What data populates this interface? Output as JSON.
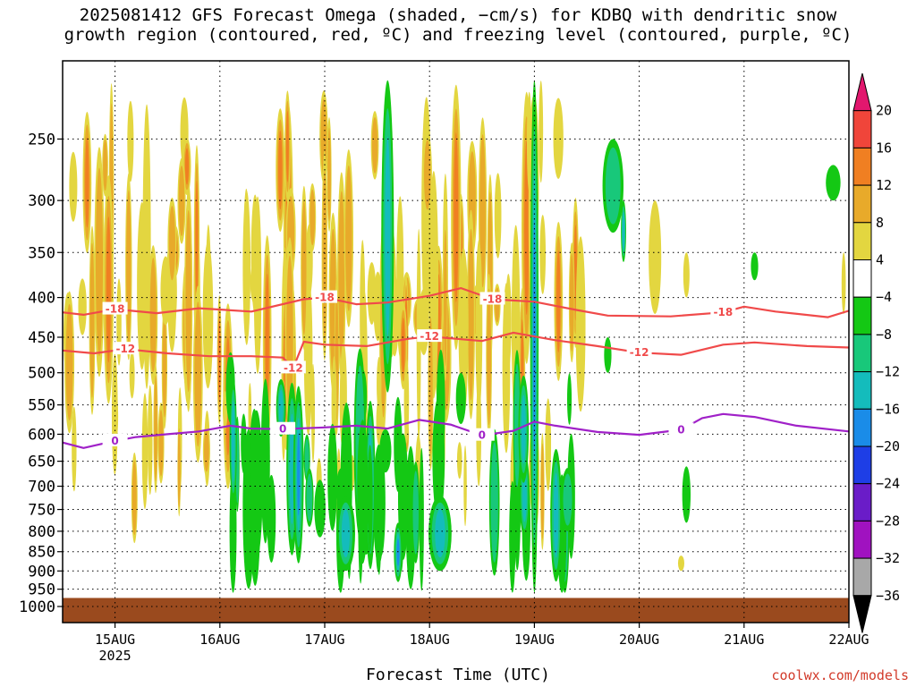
{
  "title": {
    "line1": "2025081412 GFS Forecast Omega (shaded, −cm/s) for KDBQ with dendritic snow",
    "line2": "growth region (contoured, red, ºC) and freezing level (contoured, purple, ºC)"
  },
  "credit": "coolwx.com/models",
  "chart_data": {
    "type": "heatmap",
    "xlabel": "Forecast Time (UTC)",
    "ylabel": "",
    "x_ticks": [
      {
        "label": "15AUG",
        "sub": "2025",
        "day": 15
      },
      {
        "label": "16AUG",
        "sub": "",
        "day": 16
      },
      {
        "label": "17AUG",
        "sub": "",
        "day": 17
      },
      {
        "label": "18AUG",
        "sub": "",
        "day": 18
      },
      {
        "label": "19AUG",
        "sub": "",
        "day": 19
      },
      {
        "label": "20AUG",
        "sub": "",
        "day": 20
      },
      {
        "label": "21AUG",
        "sub": "",
        "day": 21
      },
      {
        "label": "22AUG",
        "sub": "",
        "day": 22
      }
    ],
    "xlim_days": [
      14.5,
      22
    ],
    "y_ticks": [
      250,
      300,
      350,
      400,
      450,
      500,
      550,
      600,
      650,
      700,
      750,
      800,
      850,
      900,
      950,
      1000
    ],
    "ylim_hpa": [
      200,
      1020
    ],
    "grid": true,
    "colorbar": {
      "levels": [
        20,
        16,
        12,
        8,
        4,
        -4,
        -8,
        -12,
        -16,
        -20,
        -24,
        -28,
        -32,
        -36
      ],
      "colors": [
        "#e2176e",
        "#f0453a",
        "#f07f22",
        "#e8aa2a",
        "#e3d640",
        "#ffffff",
        "#14c814",
        "#18c87a",
        "#14bcbc",
        "#1a8ce8",
        "#1e3ee6",
        "#6a1cc8",
        "#a012c0",
        "#a8a8a8",
        "#000000"
      ]
    },
    "ground_color": "#9a4a1e",
    "contours": [
      {
        "label": "-18",
        "color": "#f04a4a",
        "points": [
          [
            14.5,
            418
          ],
          [
            14.7,
            421
          ],
          [
            15.0,
            414
          ],
          [
            15.4,
            419
          ],
          [
            15.8,
            413
          ],
          [
            16.3,
            417
          ],
          [
            16.8,
            402
          ],
          [
            17.0,
            400
          ],
          [
            17.3,
            408
          ],
          [
            17.6,
            406
          ],
          [
            18.0,
            398
          ],
          [
            18.3,
            389
          ],
          [
            18.6,
            402
          ],
          [
            19.0,
            405
          ],
          [
            19.4,
            415
          ],
          [
            19.7,
            422
          ],
          [
            20.3,
            423
          ],
          [
            20.8,
            418
          ],
          [
            21.0,
            411
          ],
          [
            21.3,
            417
          ],
          [
            21.8,
            424
          ],
          [
            22.0,
            416
          ]
        ]
      },
      {
        "label": "-12",
        "color": "#f04a4a",
        "points": [
          [
            14.5,
            468
          ],
          [
            14.8,
            472
          ],
          [
            15.1,
            466
          ],
          [
            15.5,
            472
          ],
          [
            15.9,
            476
          ],
          [
            16.3,
            476
          ],
          [
            16.6,
            478
          ],
          [
            16.7,
            493
          ],
          [
            16.8,
            456
          ],
          [
            17.0,
            460
          ],
          [
            17.4,
            462
          ],
          [
            17.8,
            452
          ],
          [
            18.0,
            449
          ],
          [
            18.5,
            455
          ],
          [
            18.8,
            444
          ],
          [
            19.2,
            454
          ],
          [
            19.6,
            462
          ],
          [
            20.0,
            471
          ],
          [
            20.4,
            474
          ],
          [
            20.8,
            460
          ],
          [
            21.1,
            457
          ],
          [
            21.6,
            462
          ],
          [
            22.0,
            464
          ]
        ]
      },
      {
        "label": "0",
        "color": "#a021c8",
        "points": [
          [
            14.5,
            615
          ],
          [
            14.7,
            625
          ],
          [
            15.0,
            612
          ],
          [
            15.2,
            605
          ],
          [
            15.5,
            600
          ],
          [
            15.8,
            595
          ],
          [
            16.1,
            585
          ],
          [
            16.3,
            590
          ],
          [
            16.6,
            591
          ],
          [
            17.0,
            588
          ],
          [
            17.3,
            585
          ],
          [
            17.6,
            590
          ],
          [
            17.9,
            575
          ],
          [
            18.2,
            583
          ],
          [
            18.5,
            602
          ],
          [
            18.8,
            594
          ],
          [
            19.0,
            578
          ],
          [
            19.2,
            585
          ],
          [
            19.6,
            596
          ],
          [
            20.0,
            601
          ],
          [
            20.4,
            592
          ],
          [
            20.6,
            572
          ],
          [
            20.8,
            565
          ],
          [
            21.1,
            570
          ],
          [
            21.5,
            585
          ],
          [
            22.0,
            595
          ]
        ]
      }
    ]
  }
}
